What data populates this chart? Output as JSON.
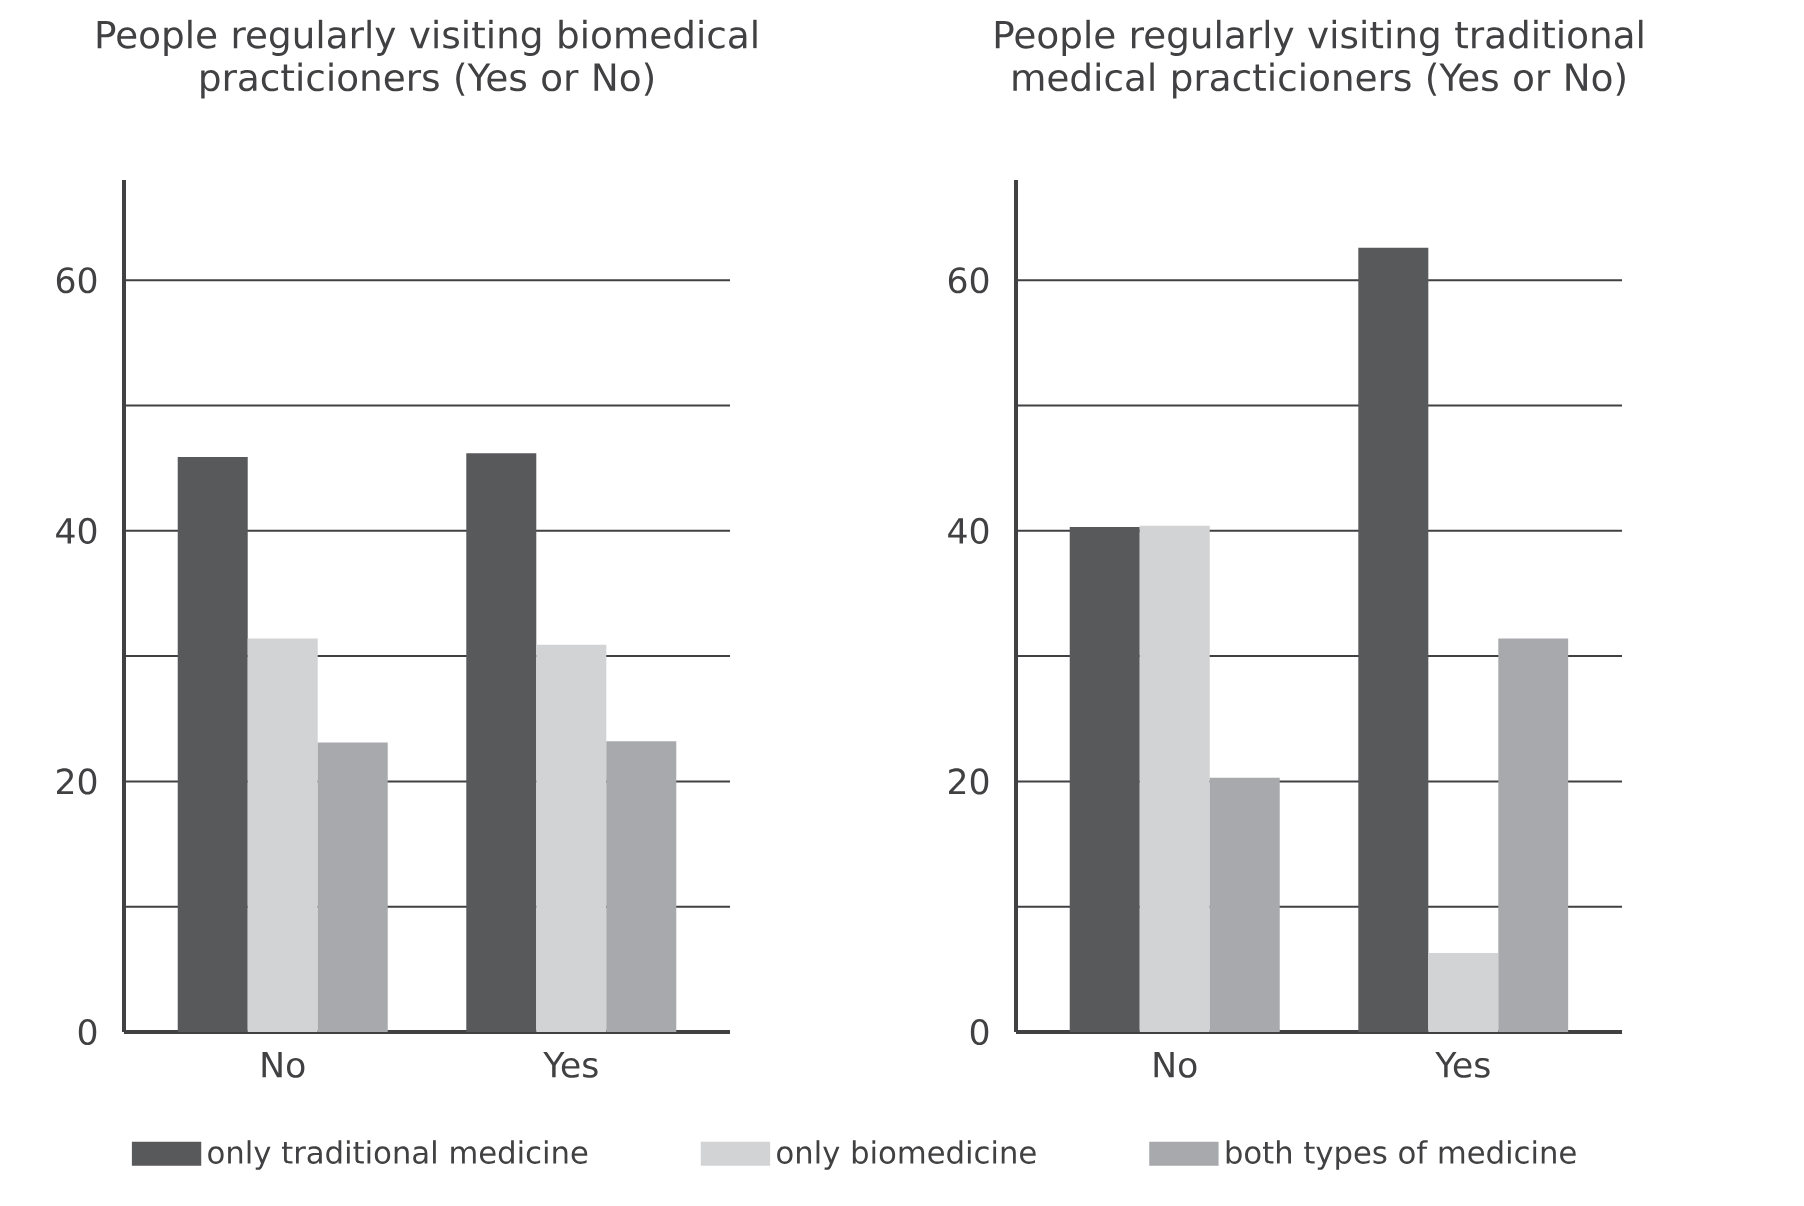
{
  "chart_data": [
    {
      "type": "bar",
      "title": "People regularly visiting biomedical practicioners (Yes or No)",
      "categories": [
        "No",
        "Yes"
      ],
      "series": [
        {
          "name": "only traditional medicine",
          "color": "#58595b",
          "values": [
            45.9,
            46.2
          ]
        },
        {
          "name": "only biomedicine",
          "color": "#d1d3d4",
          "values": [
            31.4,
            30.9
          ]
        },
        {
          "name": "both types of medicine",
          "color": "#a7a9ac",
          "values": [
            23.1,
            23.2
          ]
        }
      ],
      "ylim": [
        0,
        68
      ],
      "yticks": [
        0,
        {
          "value": 10,
          "label": null
        },
        20,
        {
          "value": 30,
          "label": null
        },
        40,
        {
          "value": 50,
          "label": null
        },
        60
      ],
      "grid": "y",
      "legend": "bottom"
    },
    {
      "type": "bar",
      "title": "People regularly visiting traditional medical practicioners (Yes or No)",
      "categories": [
        "No",
        "Yes"
      ],
      "series": [
        {
          "color": "#58595b",
          "values": [
            40.3,
            62.6
          ]
        },
        {
          "color": "#d1d3d4",
          "values": [
            40.4,
            6.3
          ]
        },
        {
          "color": "#a7a9ac",
          "values": [
            20.3,
            31.4
          ]
        }
      ],
      "ylim": [
        0,
        68
      ],
      "yticks": [
        0,
        {
          "value": 10,
          "label": null
        },
        20,
        {
          "value": 30,
          "label": null
        },
        40,
        {
          "value": 50,
          "label": null
        },
        60
      ],
      "grid": "y"
    }
  ]
}
